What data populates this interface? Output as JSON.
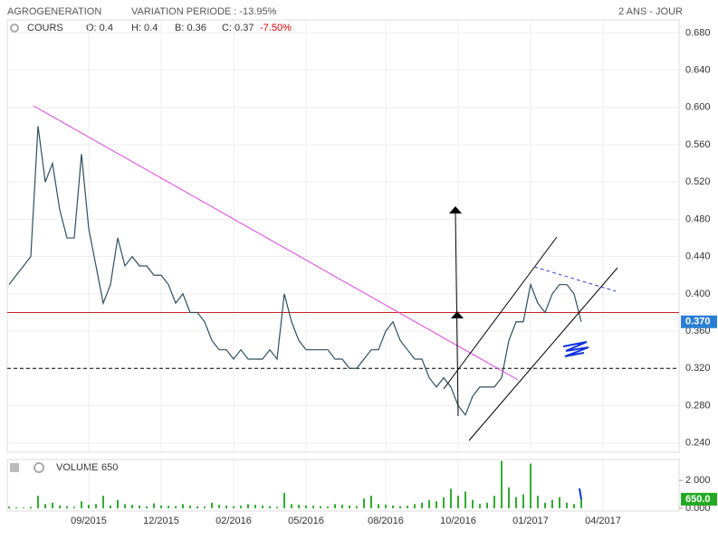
{
  "header": {
    "name": "AGROGENERATION",
    "variation": "VARIATION PERIODE : -13.95%",
    "period": "2 ANS - JOUR"
  },
  "chart_data": [
    {
      "type": "line",
      "title": "COURS",
      "open": "O: 0.4",
      "high": "H: 0.4",
      "low": "B: 0.36",
      "close": "C: 0.37",
      "change": "-7.50%",
      "categories": [
        null,
        null,
        null,
        null,
        null,
        null,
        null,
        null,
        null,
        null,
        null,
        "09/2015",
        null,
        null,
        null,
        null,
        null,
        null,
        null,
        null,
        null,
        "12/2015",
        null,
        null,
        null,
        null,
        null,
        null,
        null,
        null,
        null,
        "02/2016",
        null,
        null,
        null,
        null,
        null,
        null,
        null,
        null,
        null,
        "05/2016",
        null,
        null,
        null,
        null,
        null,
        null,
        null,
        null,
        null,
        null,
        "08/2016",
        null,
        null,
        null,
        null,
        null,
        null,
        null,
        null,
        null,
        "10/2016",
        null,
        null,
        null,
        null,
        null,
        null,
        null,
        null,
        null,
        "01/2017",
        null,
        null,
        null,
        null,
        null,
        null,
        null,
        null,
        null,
        "04/2017",
        null,
        null,
        null,
        null,
        null,
        null,
        null,
        null,
        null,
        null
      ],
      "series": [
        {
          "name": "COURS",
          "color": "#2f4f5f",
          "values": [
            0.41,
            0.42,
            0.43,
            0.44,
            0.58,
            0.52,
            0.54,
            0.49,
            0.46,
            0.46,
            0.55,
            0.47,
            0.43,
            0.39,
            0.41,
            0.46,
            0.43,
            0.44,
            0.43,
            0.43,
            0.42,
            0.42,
            0.41,
            0.39,
            0.4,
            0.38,
            0.38,
            0.37,
            0.35,
            0.34,
            0.34,
            0.33,
            0.34,
            0.33,
            0.33,
            0.33,
            0.34,
            0.33,
            0.4,
            0.37,
            0.35,
            0.34,
            0.34,
            0.34,
            0.34,
            0.33,
            0.33,
            0.32,
            0.32,
            0.33,
            0.34,
            0.34,
            0.36,
            0.37,
            0.35,
            0.34,
            0.33,
            0.33,
            0.31,
            0.3,
            0.31,
            0.3,
            0.28,
            0.27,
            0.29,
            0.3,
            0.3,
            0.3,
            0.31,
            0.35,
            0.37,
            0.37,
            0.41,
            0.39,
            0.38,
            0.4,
            0.41,
            0.41,
            0.4,
            0.37,
            null,
            null,
            null,
            null,
            null,
            null,
            null,
            null,
            null,
            null,
            null,
            null,
            null
          ]
        }
      ],
      "ylim": [
        0.23,
        0.694
      ],
      "yticks": [
        {
          "value": 0.24,
          "label": "0.240"
        },
        {
          "value": 0.28,
          "label": "0.280"
        },
        {
          "value": 0.32,
          "label": "0.320"
        },
        {
          "value": 0.36,
          "label": "0.360"
        },
        {
          "value": 0.4,
          "label": "0.400"
        },
        {
          "value": 0.44,
          "label": "0.440"
        },
        {
          "value": 0.48,
          "label": "0.480"
        },
        {
          "value": 0.52,
          "label": "0.520"
        },
        {
          "value": 0.56,
          "label": "0.560"
        },
        {
          "value": 0.6,
          "label": "0.600"
        },
        {
          "value": 0.64,
          "label": "0.640"
        },
        {
          "value": 0.68,
          "label": "0.680"
        }
      ],
      "reference_lines": [
        {
          "value": 0.38,
          "color": "#cc2222",
          "dashed": false
        },
        {
          "value": 0.32,
          "color": "#000000",
          "dashed": true
        }
      ],
      "last_value": 0.37,
      "last_label": "0.370",
      "last_color": "#2a7fd4",
      "grid": true
    },
    {
      "type": "bar",
      "title": "VOLUME",
      "title_value": "650",
      "color": "#33aa33",
      "values": [
        120,
        80,
        60,
        100,
        900,
        300,
        400,
        200,
        150,
        100,
        500,
        250,
        300,
        900,
        200,
        600,
        300,
        250,
        200,
        150,
        350,
        200,
        180,
        150,
        300,
        200,
        150,
        120,
        400,
        250,
        200,
        150,
        180,
        300,
        250,
        200,
        150,
        100,
        1100,
        300,
        250,
        200,
        180,
        150,
        120,
        300,
        250,
        200,
        150,
        700,
        900,
        300,
        250,
        200,
        150,
        180,
        300,
        400,
        600,
        500,
        800,
        1400,
        900,
        1200,
        600,
        300,
        400,
        900,
        3400,
        1500,
        800,
        1000,
        3200,
        900,
        400,
        600,
        800,
        400,
        300,
        650,
        null,
        null,
        null,
        null,
        null,
        null,
        null,
        null,
        null,
        null,
        null,
        null,
        null
      ],
      "ylim": [
        -200,
        3500
      ],
      "yticks": [
        {
          "value": 0,
          "label": "0.000"
        },
        {
          "value": 2000,
          "label": "2 000"
        }
      ],
      "last_value": 650,
      "last_label": "650.0",
      "last_color": "#22aa22"
    }
  ]
}
